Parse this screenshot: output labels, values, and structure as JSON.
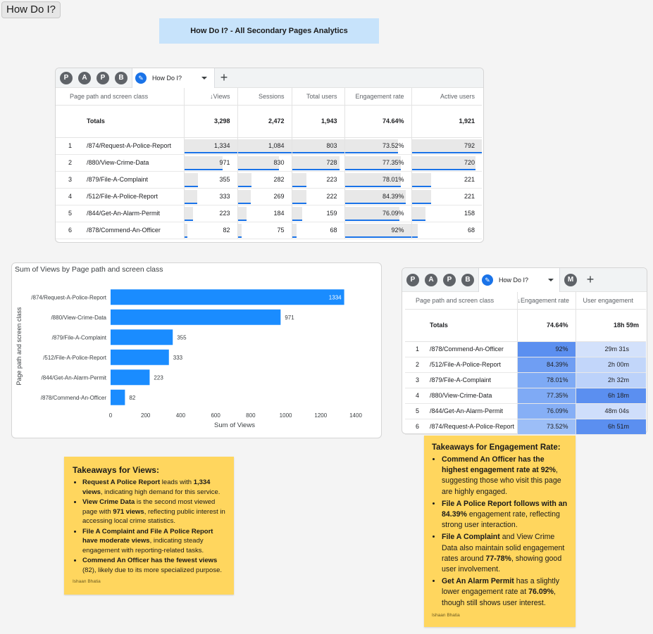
{
  "frame_label": "How Do I?",
  "banner_title": "How Do I? - All Secondary Pages Analytics",
  "tab_avatars": [
    "P",
    "A",
    "P",
    "B"
  ],
  "tab_name": "How Do I?",
  "extra_avatar": "M",
  "add_label": "+",
  "table1": {
    "headers": [
      "Page path and screen class",
      "↓Views",
      "Sessions",
      "Total users",
      "Engagement rate",
      "Active users"
    ],
    "totals_label": "Totals",
    "totals": [
      "3,298",
      "2,472",
      "1,943",
      "74.64%",
      "1,921"
    ],
    "rows": [
      {
        "n": "1",
        "page": "/874/Request-A-Police-Report",
        "cells": [
          "1,334",
          "1,084",
          "803",
          "73.52%",
          "792"
        ]
      },
      {
        "n": "2",
        "page": "/880/View-Crime-Data",
        "cells": [
          "971",
          "830",
          "728",
          "77.35%",
          "720"
        ]
      },
      {
        "n": "3",
        "page": "/879/File-A-Complaint",
        "cells": [
          "355",
          "282",
          "223",
          "78.01%",
          "221"
        ]
      },
      {
        "n": "4",
        "page": "/512/File-A-Police-Report",
        "cells": [
          "333",
          "269",
          "222",
          "84.39%",
          "221"
        ]
      },
      {
        "n": "5",
        "page": "/844/Get-An-Alarm-Permit",
        "cells": [
          "223",
          "184",
          "159",
          "76.09%",
          "158"
        ]
      },
      {
        "n": "6",
        "page": "/878/Commend-An-Officer",
        "cells": [
          "82",
          "75",
          "68",
          "92%",
          "68"
        ]
      }
    ]
  },
  "table1_fractions": [
    [
      1.0,
      1.0,
      1.0,
      0.7992,
      1.0
    ],
    [
      0.7279,
      0.7657,
      0.9066,
      0.8405,
      0.9091
    ],
    [
      0.2661,
      0.2601,
      0.2777,
      0.848,
      0.279
    ],
    [
      0.2496,
      0.2482,
      0.2765,
      0.9173,
      0.279
    ],
    [
      0.1672,
      0.1697,
      0.198,
      0.8271,
      0.1995
    ],
    [
      0.0615,
      0.0692,
      0.0847,
      1.0,
      0.0859
    ]
  ],
  "table2": {
    "headers": [
      "Page path and screen class",
      "↓Engagement rate",
      "User engagement"
    ],
    "totals_label": "Totals",
    "totals": [
      "74.64%",
      "18h 59m"
    ],
    "rows": [
      {
        "n": "1",
        "page": "/878/Commend-An-Officer",
        "rate": "92%",
        "eng": "29m 31s"
      },
      {
        "n": "2",
        "page": "/512/File-A-Police-Report",
        "rate": "84.39%",
        "eng": "2h 00m"
      },
      {
        "n": "3",
        "page": "/879/File-A-Complaint",
        "rate": "78.01%",
        "eng": "2h 32m"
      },
      {
        "n": "4",
        "page": "/880/View-Crime-Data",
        "rate": "77.35%",
        "eng": "6h 18m"
      },
      {
        "n": "5",
        "page": "/844/Get-An-Alarm-Permit",
        "rate": "76.09%",
        "eng": "48m 04s"
      },
      {
        "n": "6",
        "page": "/874/Request-A-Police-Report",
        "rate": "73.52%",
        "eng": "6h 51m"
      }
    ],
    "rate_colors": [
      "#5b8ff0",
      "#6f9ef3",
      "#7eaaf5",
      "#7faaf5",
      "#86aff6",
      "#9cbef7"
    ],
    "eng_colors": [
      "#d3e1fb",
      "#c2d6fa",
      "#bcd2fa",
      "#5b8ff0",
      "#cfdefb",
      "#5b8ff0"
    ]
  },
  "chart_data": {
    "type": "bar",
    "orientation": "horizontal",
    "title": "Sum of Views by Page path and screen class",
    "xlabel": "Sum of Views",
    "ylabel": "Page path and screen class",
    "categories": [
      "/874/Request-A-Police-Report",
      "/880/View-Crime-Data",
      "/879/File-A-Complaint",
      "/512/File-A-Police-Report",
      "/844/Get-An-Alarm-Permit",
      "/878/Commend-An-Officer"
    ],
    "values": [
      1334,
      971,
      355,
      333,
      223,
      82
    ],
    "xlim": [
      0,
      1400
    ],
    "xticks": [
      0,
      200,
      400,
      600,
      800,
      1000,
      1200,
      1400
    ],
    "bar_color": "#1a8cff"
  },
  "note1": {
    "title": "Takeaways for Views:",
    "items": [
      [
        {
          "b": "Request A Police Report"
        },
        {
          "t": " leads with "
        },
        {
          "b": "1,334 views"
        },
        {
          "t": ", indicating high demand for this service."
        }
      ],
      [
        {
          "b": "View Crime Data"
        },
        {
          "t": " is the second most viewed page with "
        },
        {
          "b": "971 views"
        },
        {
          "t": ", reflecting public interest in accessing local crime statistics."
        }
      ],
      [
        {
          "b": "File A Complaint and File A Police Report have moderate views"
        },
        {
          "t": ", indicating steady engagement with reporting-related tasks."
        }
      ],
      [
        {
          "b": "Commend An Officer has the fewest views"
        },
        {
          "t": " (82), likely due to its more specialized purpose."
        }
      ]
    ],
    "author": "Ishaan Bhatia"
  },
  "note2": {
    "title": "Takeaways for Engagement Rate:",
    "items": [
      [
        {
          "b": "Commend An Officer has the highest engagement rate at 92%"
        },
        {
          "t": ", suggesting those who visit this page are highly engaged."
        }
      ],
      [
        {
          "b": "File A Police Report follows with an 84.39%"
        },
        {
          "t": " engagement rate, reflecting strong user interaction."
        }
      ],
      [
        {
          "b": "File A Complaint"
        },
        {
          "t": " and View Crime Data also maintain solid engagement rates around "
        },
        {
          "b": "77-78%"
        },
        {
          "t": ", showing good user involvement."
        }
      ],
      [
        {
          "b": "Get An Alarm Permit"
        },
        {
          "t": " has a slightly lower engagement rate at "
        },
        {
          "b": "76.09%"
        },
        {
          "t": ", though still shows user interest."
        }
      ]
    ],
    "author": "Ishaan Bhatia"
  }
}
